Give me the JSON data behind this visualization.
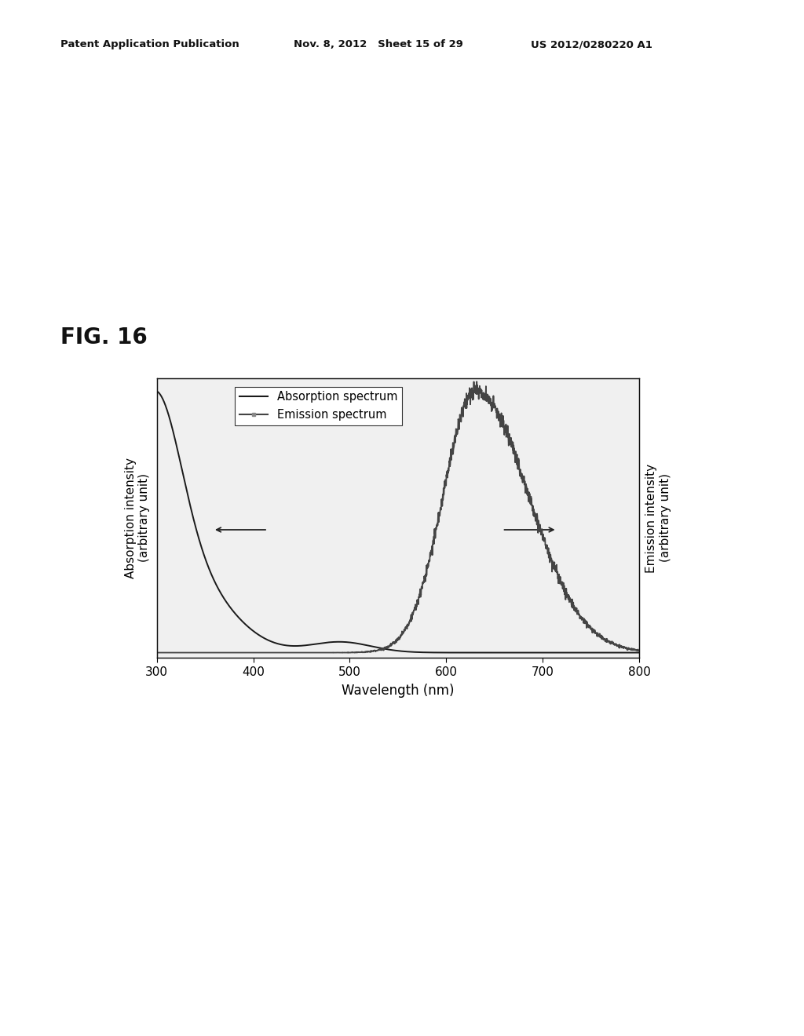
{
  "title_fig": "FIG. 16",
  "header_left": "Patent Application Publication",
  "header_mid": "Nov. 8, 2012   Sheet 15 of 29",
  "header_right": "US 2012/0280220 A1",
  "xlabel": "Wavelength (nm)",
  "ylabel_left": "Absorption intensity\n(arbitrary unit)",
  "ylabel_right": "Emission intensity\n(arbitrary unit)",
  "legend_absorption": "Absorption spectrum",
  "legend_emission": "Emission spectrum",
  "xlim": [
    300,
    800
  ],
  "xticks": [
    300,
    400,
    500,
    600,
    700,
    800
  ],
  "background_color": "#ffffff",
  "plot_bg": "#f0f0f0",
  "absorption_color": "#1a1a1a",
  "emission_color": "#444444",
  "arrow_color": "#222222"
}
